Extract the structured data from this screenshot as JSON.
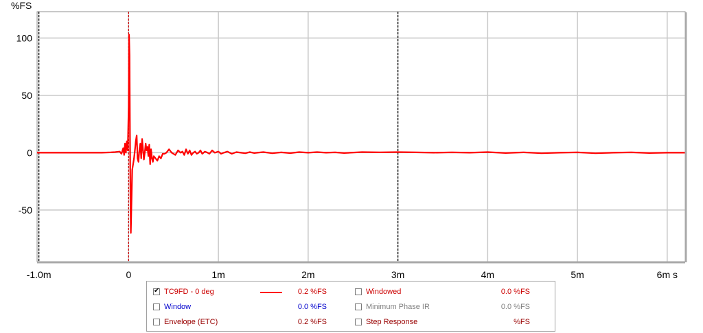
{
  "chart_data": {
    "type": "line",
    "ylabel": "%FS",
    "xlabel": "",
    "xlim": [
      -1.02,
      6.2
    ],
    "ylim": [
      -95,
      123
    ],
    "x_ticks": [
      {
        "v": -1.0,
        "label": "-1.0m"
      },
      {
        "v": 0,
        "label": "0"
      },
      {
        "v": 1,
        "label": "1m"
      },
      {
        "v": 2,
        "label": "2m"
      },
      {
        "v": 3,
        "label": "3m"
      },
      {
        "v": 4,
        "label": "4m"
      },
      {
        "v": 5,
        "label": "5m"
      },
      {
        "v": 6,
        "label": "6m s"
      }
    ],
    "y_ticks": [
      {
        "v": 100,
        "label": "100"
      },
      {
        "v": 50,
        "label": "50"
      },
      {
        "v": 0,
        "label": "0"
      },
      {
        "v": -50,
        "label": "-50"
      }
    ],
    "grid": true,
    "markers": [
      {
        "x": -1.0,
        "color": "#000000",
        "style": "dashed"
      },
      {
        "x": 0,
        "color": "#cc0000",
        "style": "dashed"
      },
      {
        "x": 3.0,
        "color": "#000000",
        "style": "dashed"
      }
    ],
    "series": [
      {
        "name": "TC9FD - 0 deg",
        "color": "#ff0000",
        "x": [
          -1.02,
          -0.5,
          -0.3,
          -0.2,
          -0.15,
          -0.1,
          -0.08,
          -0.06,
          -0.05,
          -0.04,
          -0.03,
          -0.02,
          -0.01,
          0.0,
          0.005,
          0.01,
          0.015,
          0.02,
          0.025,
          0.03,
          0.04,
          0.05,
          0.06,
          0.07,
          0.08,
          0.09,
          0.1,
          0.11,
          0.12,
          0.13,
          0.14,
          0.15,
          0.16,
          0.17,
          0.18,
          0.19,
          0.2,
          0.21,
          0.22,
          0.23,
          0.24,
          0.25,
          0.26,
          0.27,
          0.28,
          0.3,
          0.32,
          0.34,
          0.36,
          0.38,
          0.4,
          0.42,
          0.45,
          0.48,
          0.52,
          0.55,
          0.58,
          0.6,
          0.62,
          0.64,
          0.66,
          0.68,
          0.7,
          0.72,
          0.74,
          0.76,
          0.78,
          0.8,
          0.82,
          0.85,
          0.88,
          0.9,
          0.93,
          0.96,
          1.0,
          1.03,
          1.06,
          1.1,
          1.15,
          1.2,
          1.25,
          1.3,
          1.35,
          1.4,
          1.5,
          1.6,
          1.7,
          1.8,
          1.9,
          2.0,
          2.1,
          2.2,
          2.3,
          2.4,
          2.6,
          2.8,
          3.0,
          3.2,
          3.4,
          3.6,
          3.8,
          4.0,
          4.2,
          4.4,
          4.6,
          4.8,
          5.0,
          5.2,
          5.4,
          5.6,
          5.8,
          6.0,
          6.2
        ],
        "y": [
          0,
          0,
          0,
          0.3,
          0.5,
          1,
          -1,
          4,
          -2,
          8,
          0,
          10,
          2,
          40,
          103,
          85,
          20,
          -40,
          -70,
          -50,
          -15,
          -10,
          -5,
          2,
          10,
          15,
          -5,
          -8,
          3,
          8,
          -5,
          12,
          3,
          -6,
          0,
          8,
          2,
          5,
          -3,
          7,
          -10,
          3,
          -5,
          -8,
          -3,
          -5,
          -7,
          -3,
          -5,
          -1,
          -1,
          0,
          3,
          0,
          -2,
          2,
          0,
          1,
          -2,
          3,
          -1,
          2,
          -2,
          0,
          1,
          -1,
          0,
          2,
          -1,
          1,
          0,
          -1,
          2,
          0,
          1,
          -1,
          0,
          1,
          -1,
          0.5,
          0,
          -0.5,
          0.5,
          -0.3,
          0.5,
          -0.5,
          0.3,
          -0.4,
          0.5,
          0,
          0.5,
          0,
          0.3,
          -0.3,
          0.5,
          0.3,
          0.5,
          0.3,
          0,
          0.3,
          0,
          0.5,
          -0.3,
          0.3,
          -0.5,
          0,
          0.3,
          -0.5,
          0,
          0.3,
          -0.3,
          0,
          0
        ]
      }
    ]
  },
  "legend": {
    "rows": [
      {
        "left": {
          "checked": true,
          "name": "TC9FD - 0 deg",
          "name_color": "#cc0000",
          "show_swatch": true,
          "value": "0.2 %FS",
          "value_color": "#cc0000"
        },
        "right": {
          "checked": false,
          "name": "Windowed",
          "name_color": "#cc0000",
          "value": "0.0 %FS",
          "value_color": "#cc0000"
        }
      },
      {
        "left": {
          "checked": false,
          "name": "Window",
          "name_color": "#0000cc",
          "show_swatch": false,
          "value": "0.0 %FS",
          "value_color": "#0000cc"
        },
        "right": {
          "checked": false,
          "name": "Minimum Phase IR",
          "name_color": "#808080",
          "value": "0.0 %FS",
          "value_color": "#808080"
        }
      },
      {
        "left": {
          "checked": false,
          "name": "Envelope (ETC)",
          "name_color": "#990000",
          "show_swatch": false,
          "value": "0.2 %FS",
          "value_color": "#990000"
        },
        "right": {
          "checked": false,
          "name": "Step Response",
          "name_color": "#990000",
          "value": "%FS",
          "value_color": "#990000"
        }
      }
    ]
  }
}
